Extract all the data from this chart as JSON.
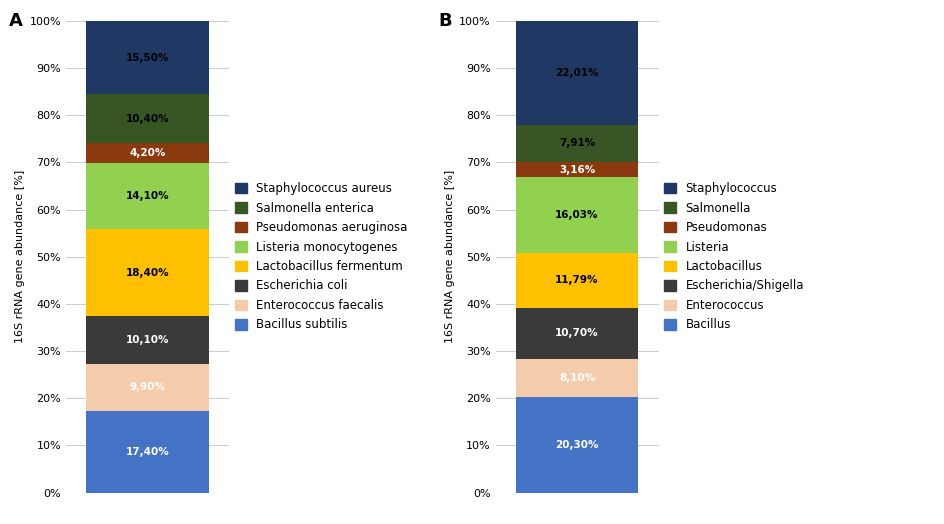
{
  "chart_A": {
    "label": "A",
    "categories": [
      "Bacillus subtilis",
      "Enterococcus faecalis",
      "Escherichia coli",
      "Lactobacillus fermentum",
      "Listeria monocytogenes",
      "Pseudomonas aeruginosa",
      "Salmonella enterica",
      "Staphylococcus aureus"
    ],
    "values": [
      17.4,
      9.9,
      10.1,
      18.4,
      14.1,
      4.2,
      10.4,
      15.5
    ],
    "colors": [
      "#4472C4",
      "#F4CCAC",
      "#3A3A3A",
      "#FFC000",
      "#92D050",
      "#8B3A0F",
      "#375623",
      "#1F3864"
    ],
    "legend_labels": [
      "Staphylococcus aureus",
      "Salmonella enterica",
      "Pseudomonas aeruginosa",
      "Listeria monocytogenes",
      "Lactobacillus fermentum",
      "Escherichia coli",
      "Enterococcus faecalis",
      "Bacillus subtilis"
    ],
    "legend_colors": [
      "#1F3864",
      "#375623",
      "#8B3A0F",
      "#92D050",
      "#FFC000",
      "#3A3A3A",
      "#F4CCAC",
      "#4472C4"
    ],
    "label_text_colors": [
      "white",
      "white",
      "white",
      "black",
      "black",
      "white",
      "black",
      "black"
    ],
    "ylabel": "16S rRNA gene abundance [%]"
  },
  "chart_B": {
    "label": "B",
    "categories": [
      "Bacillus",
      "Enterococcus",
      "Escherichia/Shigella",
      "Lactobacillus",
      "Listeria",
      "Pseudomonas",
      "Salmonella",
      "Staphylococcus"
    ],
    "values": [
      20.3,
      8.1,
      10.7,
      11.79,
      16.03,
      3.16,
      7.91,
      22.01
    ],
    "colors": [
      "#4472C4",
      "#F4CCAC",
      "#3A3A3A",
      "#FFC000",
      "#92D050",
      "#8B3A0F",
      "#375623",
      "#1F3864"
    ],
    "legend_labels": [
      "Staphylococcus",
      "Salmonella",
      "Pseudomonas",
      "Listeria",
      "Lactobacillus",
      "Escherichia/Shigella",
      "Enterococcus",
      "Bacillus"
    ],
    "legend_colors": [
      "#1F3864",
      "#375623",
      "#8B3A0F",
      "#92D050",
      "#FFC000",
      "#3A3A3A",
      "#F4CCAC",
      "#4472C4"
    ],
    "label_text_colors": [
      "white",
      "white",
      "white",
      "black",
      "black",
      "white",
      "black",
      "black"
    ],
    "ylabel": "16S rRNA gene abundance [%]"
  },
  "background_color": "#ffffff",
  "yticks": [
    0,
    10,
    20,
    30,
    40,
    50,
    60,
    70,
    80,
    90,
    100
  ],
  "ytick_labels": [
    "0%",
    "10%",
    "20%",
    "30%",
    "40%",
    "50%",
    "60%",
    "70%",
    "80%",
    "90%",
    "100%"
  ]
}
